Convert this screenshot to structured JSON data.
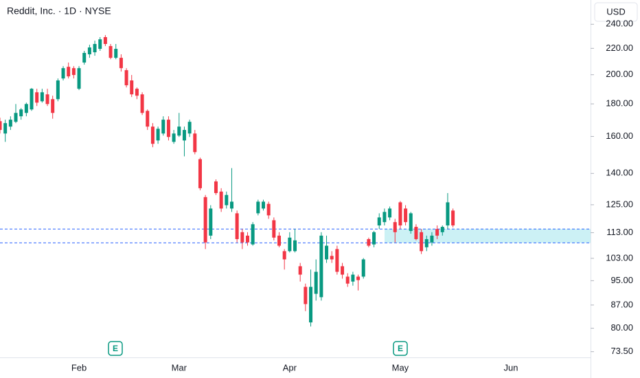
{
  "chart_data": {
    "type": "candlestick",
    "title": "Reddit, Inc. · 1D · NYSE",
    "currency": "USD",
    "log_scale": true,
    "grid": false,
    "up_color": "#089981",
    "down_color": "#f23645",
    "level_color": "#2962ff",
    "zone_color": "#bfeef3",
    "categories": [
      null,
      null,
      null,
      null,
      null,
      null,
      null,
      null,
      null,
      null,
      null,
      null,
      null,
      null,
      null,
      "Feb",
      null,
      null,
      null,
      null,
      null,
      null,
      null,
      null,
      null,
      null,
      null,
      null,
      null,
      null,
      null,
      null,
      null,
      null,
      "Mar",
      null,
      null,
      null,
      null,
      null,
      null,
      null,
      null,
      null,
      null,
      null,
      null,
      null,
      null,
      null,
      null,
      null,
      null,
      null,
      null,
      "Apr",
      null,
      null,
      null,
      null,
      null,
      null,
      null,
      null,
      null,
      null,
      null,
      null,
      null,
      null,
      null,
      null,
      null,
      null,
      null,
      null,
      "May",
      null,
      null,
      null,
      null,
      null,
      null,
      null,
      null,
      null,
      null,
      null,
      null,
      null,
      null,
      null,
      null,
      null,
      null,
      null,
      null,
      "Jun"
    ],
    "open": [
      169.1,
      161.7,
      165.8,
      168.7,
      172.1,
      174.2,
      176.4,
      187.7,
      181.7,
      186.3,
      183.1,
      183.1,
      197.3,
      205.8,
      204.8,
      190.1,
      209.0,
      215.3,
      216.9,
      219.6,
      229.1,
      221.8,
      212.6,
      212.6,
      203.3,
      195.9,
      190.1,
      186.3,
      175.5,
      165.8,
      157.7,
      161.7,
      170.0,
      156.9,
      160.5,
      157.7,
      161.7,
      161.7,
      147.4,
      128.5,
      111.8,
      136.0,
      131.1,
      124.8,
      123.3,
      121.2,
      113.2,
      111.8,
      108.3,
      121.2,
      123.3,
      125.4,
      118.2,
      111.8,
      105.7,
      105.7,
      105.7,
      100.1,
      92.9,
      81.7,
      90.6,
      89.5,
      102.6,
      103.9,
      106.5,
      100.1,
      96.4,
      94.7,
      96.4,
      96.4,
      110.4,
      108.3,
      116.0,
      117.4,
      119.4,
      117.4,
      126.1,
      123.3,
      113.7,
      115.4,
      113.2,
      107.2,
      109.1,
      114.5,
      113.2,
      116.0,
      122.4,
      null,
      null,
      null,
      null,
      null,
      null,
      null,
      null,
      null,
      null,
      null
    ],
    "high": [
      171.2,
      170.0,
      172.1,
      179.9,
      177.3,
      180.8,
      190.6,
      190.1,
      190.1,
      190.1,
      185.4,
      197.3,
      206.3,
      209.0,
      206.3,
      206.3,
      218.0,
      222.9,
      226.2,
      229.1,
      230.8,
      223.5,
      223.5,
      215.3,
      204.8,
      199.8,
      191.0,
      187.7,
      176.4,
      167.9,
      165.8,
      172.1,
      172.1,
      163.8,
      174.2,
      165.8,
      170.0,
      163.8,
      148.2,
      129.5,
      124.8,
      137.0,
      132.7,
      131.1,
      142.7,
      122.4,
      114.5,
      113.2,
      117.4,
      127.3,
      127.3,
      126.4,
      119.4,
      113.2,
      106.5,
      113.2,
      114.5,
      101.3,
      94.0,
      98.9,
      102.6,
      113.2,
      111.8,
      105.7,
      107.8,
      101.3,
      97.6,
      98.1,
      97.1,
      103.1,
      111.0,
      113.7,
      121.2,
      123.3,
      124.2,
      118.8,
      126.7,
      124.8,
      121.8,
      116.5,
      114.5,
      111.8,
      113.2,
      116.0,
      116.0,
      130.4,
      123.3,
      null,
      null,
      null,
      null,
      null,
      null,
      null,
      null,
      null,
      null,
      null
    ],
    "low": [
      161.7,
      156.9,
      163.8,
      167.9,
      170.0,
      172.1,
      175.5,
      178.6,
      180.8,
      178.6,
      170.6,
      181.7,
      195.9,
      197.3,
      197.3,
      189.2,
      207.4,
      212.6,
      214.2,
      218.0,
      221.8,
      211.5,
      211.5,
      202.3,
      191.0,
      184.5,
      183.1,
      172.9,
      163.8,
      153.9,
      155.8,
      160.5,
      157.7,
      155.8,
      159.7,
      148.9,
      159.7,
      150.0,
      131.7,
      106.5,
      110.4,
      129.5,
      121.8,
      123.3,
      121.8,
      109.1,
      106.5,
      107.8,
      107.8,
      120.3,
      122.4,
      118.8,
      109.9,
      107.2,
      98.9,
      105.2,
      105.2,
      94.7,
      85.1,
      80.5,
      88.4,
      88.4,
      101.3,
      101.3,
      97.1,
      95.7,
      92.9,
      93.3,
      91.7,
      95.7,
      107.2,
      107.2,
      114.5,
      116.0,
      118.2,
      109.1,
      114.5,
      116.0,
      112.6,
      109.9,
      104.6,
      105.7,
      107.8,
      110.4,
      111.8,
      114.5,
      115.2,
      null,
      null,
      null,
      null,
      null,
      null,
      null,
      null,
      null,
      null,
      null
    ],
    "close": [
      163.8,
      167.9,
      170.0,
      174.2,
      176.4,
      179.9,
      190.1,
      180.8,
      187.7,
      179.9,
      174.2,
      195.9,
      204.8,
      198.8,
      199.8,
      204.8,
      216.4,
      220.7,
      223.5,
      227.3,
      223.5,
      212.6,
      219.6,
      204.8,
      192.5,
      186.3,
      185.4,
      174.2,
      165.8,
      155.8,
      164.5,
      170.0,
      159.7,
      161.7,
      165.8,
      163.8,
      168.7,
      151.2,
      132.7,
      109.1,
      123.3,
      130.4,
      123.3,
      129.5,
      126.4,
      110.4,
      109.1,
      109.1,
      116.5,
      126.4,
      126.4,
      120.3,
      111.0,
      107.8,
      102.6,
      111.0,
      109.9,
      97.1,
      87.3,
      92.9,
      98.1,
      111.8,
      107.8,
      102.6,
      98.1,
      97.1,
      94.0,
      97.1,
      95.2,
      102.6,
      107.8,
      113.2,
      119.4,
      121.8,
      123.3,
      113.2,
      116.0,
      117.4,
      121.2,
      110.4,
      105.7,
      110.4,
      111.8,
      111.8,
      115.4,
      126.1,
      116.0,
      null,
      null,
      null,
      null,
      null,
      null,
      null,
      null,
      null,
      null,
      null
    ],
    "levels": [
      114.5,
      108.9
    ],
    "annotations": [
      "E",
      "E"
    ],
    "ylim": [
      72,
      262
    ],
    "yticks": [
      {
        "value": 240,
        "label": "240.00"
      },
      {
        "value": 220,
        "label": "220.00"
      },
      {
        "value": 200,
        "label": "200.00"
      },
      {
        "value": 180,
        "label": "180.00"
      },
      {
        "value": 160,
        "label": "160.00"
      },
      {
        "value": 140,
        "label": "140.00"
      },
      {
        "value": 125,
        "label": "125.00"
      },
      {
        "value": 113,
        "label": "113.00"
      },
      {
        "value": 103,
        "label": "103.00"
      },
      {
        "value": 95,
        "label": "95.00"
      },
      {
        "value": 87,
        "label": "87.00"
      },
      {
        "value": 80,
        "label": "80.00"
      },
      {
        "value": 73.5,
        "label": "73.50"
      }
    ]
  }
}
